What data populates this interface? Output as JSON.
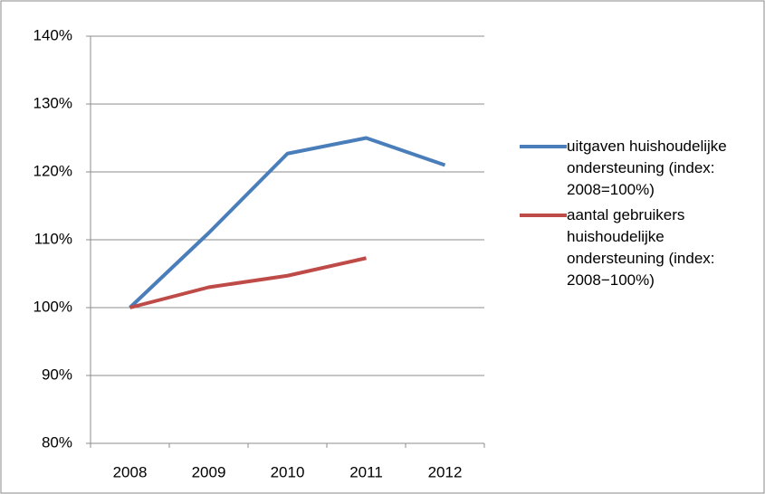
{
  "chart_data": {
    "type": "line",
    "categories": [
      "2008",
      "2009",
      "2010",
      "2011",
      "2012"
    ],
    "series": [
      {
        "name": "uitgaven huishoudelijke ondersteuning (index: 2008=100%)",
        "color": "#4a7ebb",
        "values": [
          100,
          111,
          122.7,
          125,
          121
        ]
      },
      {
        "name": "aantal gebruikers huishoudelijke ondersteuning (index: 2008−100%)",
        "color": "#be4b48",
        "values": [
          100,
          103,
          104.7,
          107.3,
          null
        ]
      }
    ],
    "ylim": [
      80,
      140
    ],
    "yticks": [
      {
        "value": 80,
        "label": "80%"
      },
      {
        "value": 90,
        "label": "90%"
      },
      {
        "value": 100,
        "label": "100%"
      },
      {
        "value": 110,
        "label": "110%"
      },
      {
        "value": 120,
        "label": "120%"
      },
      {
        "value": 130,
        "label": "130%"
      },
      {
        "value": 140,
        "label": "140%"
      }
    ],
    "grid": true
  }
}
